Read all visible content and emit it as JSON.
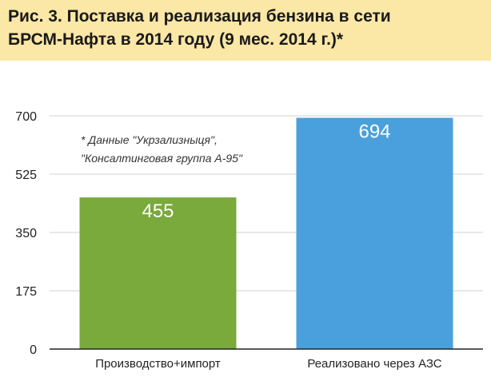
{
  "title": {
    "line1": "Рис. 3. Поставка и реализация бензина в сети",
    "line2": "БРСМ-Нафта в 2014 году (9 мес. 2014 г.)*"
  },
  "note": {
    "line1": "* Данные \"Укрзализныця\",",
    "line2": "\"Консалтинговая группа А-95\""
  },
  "colors": {
    "title_band": "#fbe7a6",
    "grid": "#d0d0d0",
    "axis": "#222222"
  },
  "chart_data": {
    "type": "bar",
    "title": "Рис. 3. Поставка и реализация бензина в сети БРСМ-Нафта в 2014 году (9 мес. 2014 г.)*",
    "categories": [
      "Производство+импорт",
      "Реализовано через АЗС"
    ],
    "values": [
      455,
      694
    ],
    "value_labels": [
      "455",
      "694"
    ],
    "colors": [
      "#7aa93c",
      "#4aa0dc"
    ],
    "yticks": [
      "0",
      "175",
      "350",
      "525",
      "700"
    ],
    "ylim": [
      0,
      700
    ],
    "xlabel": "",
    "ylabel": "",
    "grid": true
  }
}
